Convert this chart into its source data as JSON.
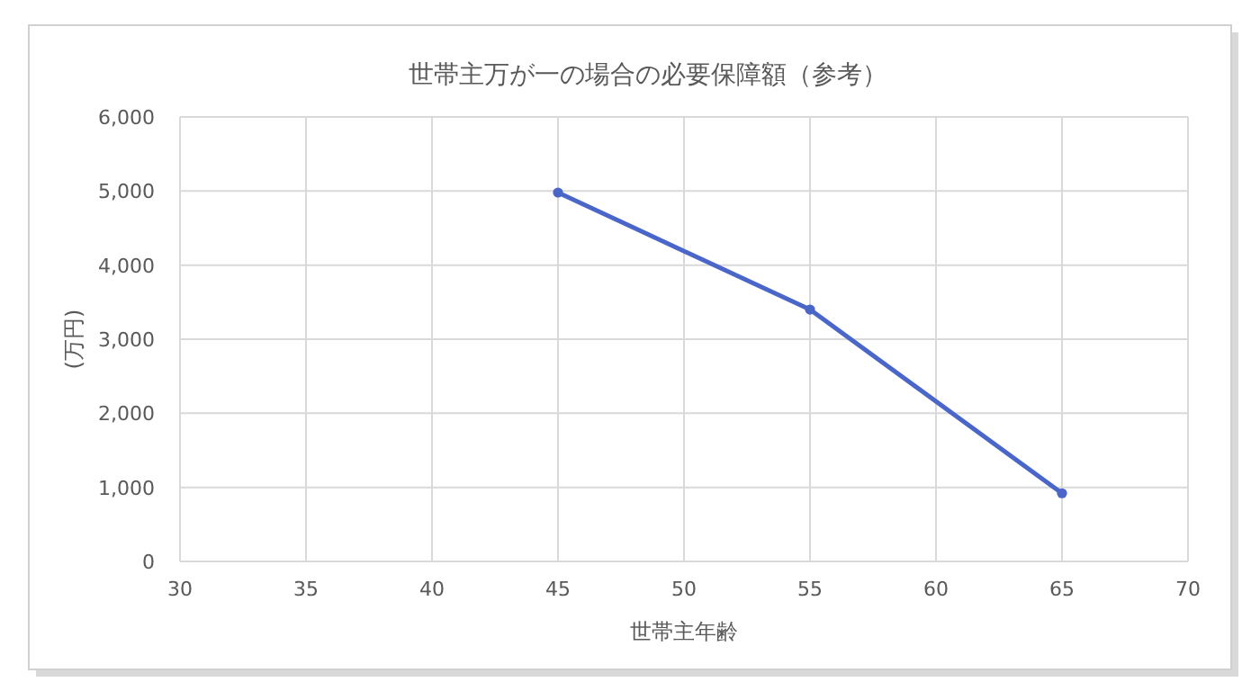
{
  "chart_data": {
    "type": "line",
    "title": "世帯主万が一の場合の必要保障額（参考）",
    "xlabel": "世帯主年齢",
    "ylabel": "(万円)",
    "x": [
      45,
      55,
      65
    ],
    "series": [
      {
        "color": "#4a66c8",
        "values": [
          4980,
          3400,
          920
        ]
      }
    ],
    "xlim": [
      30,
      70
    ],
    "xticks": [
      30,
      35,
      40,
      45,
      50,
      55,
      60,
      65,
      70
    ],
    "ylim": [
      0,
      6000
    ],
    "yticks": [
      0,
      {
        "value": 1000,
        "label": "1,000"
      },
      {
        "value": 2000,
        "label": "2,000"
      },
      {
        "value": 3000,
        "label": "3,000"
      },
      {
        "value": 4000,
        "label": "4,000"
      },
      {
        "value": 5000,
        "label": "5,000"
      },
      {
        "value": 6000,
        "label": "6,000"
      }
    ],
    "grid": true,
    "marker": "circle",
    "line_style": "solid"
  }
}
